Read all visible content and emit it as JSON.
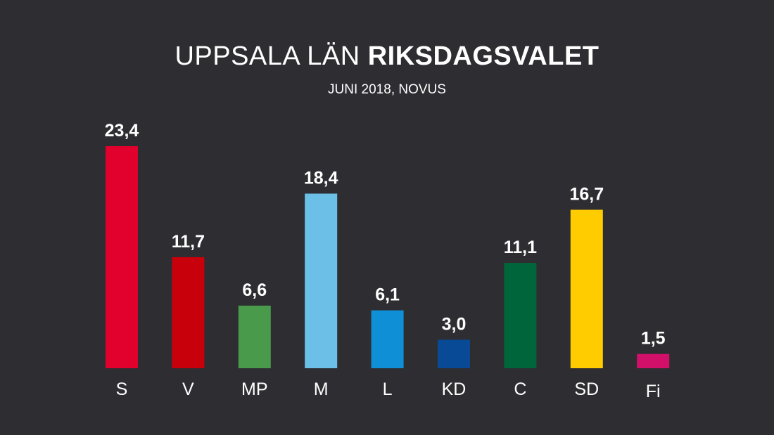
{
  "header": {
    "title_light": "UPPSALA LÄN",
    "title_bold": "RIKSDAGSVALET",
    "subtitle": "JUNI 2018, NOVUS"
  },
  "chart_data": {
    "type": "bar",
    "title": "UPPSALA LÄN RIKSDAGSVALET",
    "subtitle": "JUNI 2018, NOVUS",
    "xlabel": "",
    "ylabel": "",
    "ylim": [
      0,
      23.4
    ],
    "grid": false,
    "categories": [
      "S",
      "V",
      "MP",
      "M",
      "L",
      "KD",
      "C",
      "SD",
      "Fi"
    ],
    "values": [
      23.4,
      11.7,
      6.6,
      18.4,
      6.1,
      3.0,
      11.1,
      16.7,
      1.5
    ],
    "value_labels": [
      "23,4",
      "11,7",
      "6,6",
      "18,4",
      "6,1",
      "3,0",
      "11,1",
      "16,7",
      "1,5"
    ],
    "colors": [
      "#e2002c",
      "#c8000b",
      "#4a9a4c",
      "#6cc0e8",
      "#0f8fd6",
      "#084a96",
      "#00653a",
      "#ffcc00",
      "#d2106a"
    ]
  }
}
